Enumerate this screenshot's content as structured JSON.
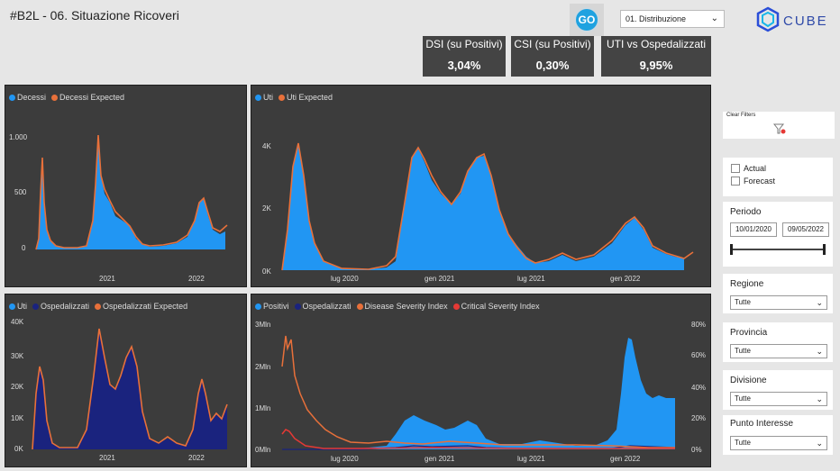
{
  "header": {
    "title": "#B2L - 06. Situazione Ricoveri",
    "go_label": "GO",
    "distribution_select": "01. Distribuzione",
    "logo_text": "CUBE"
  },
  "kpis": [
    {
      "label": "DSI (su Positivi)",
      "value": "3,04%"
    },
    {
      "label": "CSI (su Positivi)",
      "value": "0,30%"
    },
    {
      "label": "UTI vs Ospedalizzati",
      "value": "9,95%"
    }
  ],
  "colors": {
    "blue": "#2196f3",
    "orange": "#e8703a",
    "navy": "#1a237e",
    "red": "#e53935",
    "panel": "#3c3c3c"
  },
  "charts": {
    "decessi": {
      "legend": [
        "Decessi",
        "Decessi Expected"
      ],
      "y_ticks": [
        "1.000",
        "500",
        "0"
      ],
      "x_ticks": [
        "2021",
        "2022"
      ]
    },
    "uti": {
      "legend": [
        "Uti",
        "Uti Expected"
      ],
      "y_ticks": [
        "4K",
        "2K",
        "0K"
      ],
      "x_ticks": [
        "lug 2020",
        "gen 2021",
        "lug 2021",
        "gen 2022"
      ]
    },
    "ospedalizzati": {
      "legend": [
        "Uti",
        "Ospedalizzati",
        "Ospedalizzati Expected"
      ],
      "y_ticks": [
        "40K",
        "30K",
        "20K",
        "10K",
        "0K"
      ],
      "x_ticks": [
        "2021",
        "2022"
      ]
    },
    "positivi": {
      "legend": [
        "Positivi",
        "Ospedalizzati",
        "Disease Severity Index",
        "Critical Severity Index"
      ],
      "y_ticks": [
        "3Mln",
        "2Mln",
        "1Mln",
        "0Mln"
      ],
      "y2_ticks": [
        "80%",
        "60%",
        "40%",
        "20%",
        "0%"
      ],
      "x_ticks": [
        "lug 2020",
        "gen 2021",
        "lug 2021",
        "gen 2022"
      ]
    }
  },
  "sidebar": {
    "clear_filters": "Clear Filters",
    "actual": "Actual",
    "forecast": "Forecast",
    "periodo": {
      "label": "Periodo",
      "from": "10/01/2020",
      "to": "09/05/2022"
    },
    "regione": {
      "label": "Regione",
      "value": "Tutte"
    },
    "provincia": {
      "label": "Provincia",
      "value": "Tutte"
    },
    "divisione": {
      "label": "Divisione",
      "value": "Tutte"
    },
    "punto": {
      "label": "Punto Interesse",
      "value": "Tutte"
    }
  }
}
